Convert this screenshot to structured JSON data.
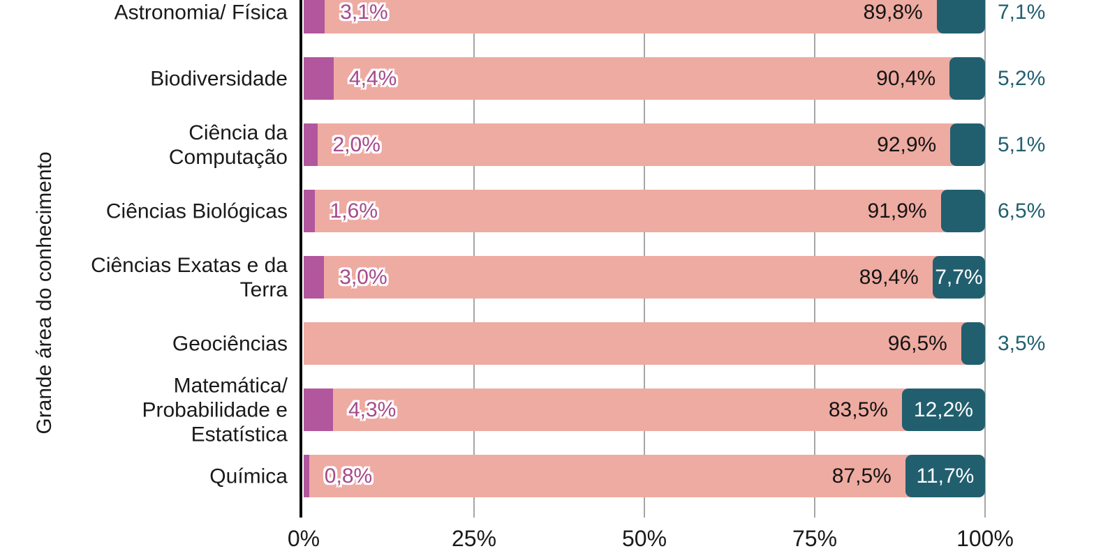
{
  "chart_data": {
    "type": "bar",
    "orientation": "horizontal",
    "stacked": true,
    "percent_scale": true,
    "title": "",
    "xlabel": "",
    "ylabel": "Grande área do conhecimento",
    "xlim": [
      0,
      100
    ],
    "xticks": [
      "0%",
      "25%",
      "50%",
      "75%",
      "100%"
    ],
    "grid": true,
    "legend": false,
    "categories": [
      "Astronomia/ Física",
      "Biodiversidade",
      "Ciência da Computação",
      "Ciências Biológicas",
      "Ciências Exatas e da Terra",
      "Geociências",
      "Matemática/ Probabilidade e Estatística",
      "Química"
    ],
    "series": [
      {
        "name": "segmento-magenta",
        "color": "#b2579d",
        "values": [
          3.1,
          4.4,
          2.0,
          1.6,
          3.0,
          0.0,
          4.3,
          0.8
        ]
      },
      {
        "name": "segmento-salmao",
        "color": "#eeaba1",
        "values": [
          89.8,
          90.4,
          92.9,
          91.9,
          89.4,
          96.5,
          83.5,
          87.5
        ]
      },
      {
        "name": "segmento-teal",
        "color": "#215f6f",
        "values": [
          7.1,
          5.2,
          5.1,
          6.5,
          7.7,
          3.5,
          12.2,
          11.7
        ]
      }
    ],
    "rows": [
      {
        "label_lines": [
          "Astronomia/ Física"
        ],
        "magenta": 3.1,
        "salmon": 89.8,
        "teal": 7.1,
        "magenta_label": "3,1%",
        "salmon_label": "89,8%",
        "teal_label": "7,1%",
        "teal_label_placement": "outside"
      },
      {
        "label_lines": [
          "Biodiversidade"
        ],
        "magenta": 4.4,
        "salmon": 90.4,
        "teal": 5.2,
        "magenta_label": "4,4%",
        "salmon_label": "90,4%",
        "teal_label": "5,2%",
        "teal_label_placement": "outside"
      },
      {
        "label_lines": [
          "Ciência da",
          "Computação"
        ],
        "magenta": 2.0,
        "salmon": 92.9,
        "teal": 5.1,
        "magenta_label": "2,0%",
        "salmon_label": "92,9%",
        "teal_label": "5,1%",
        "teal_label_placement": "outside"
      },
      {
        "label_lines": [
          "Ciências Biológicas"
        ],
        "magenta": 1.6,
        "salmon": 91.9,
        "teal": 6.5,
        "magenta_label": "1,6%",
        "salmon_label": "91,9%",
        "teal_label": "6,5%",
        "teal_label_placement": "outside"
      },
      {
        "label_lines": [
          "Ciências Exatas e da",
          "Terra"
        ],
        "magenta": 3.0,
        "salmon": 89.4,
        "teal": 7.7,
        "magenta_label": "3,0%",
        "salmon_label": "89,4%",
        "teal_label": "7,7%",
        "teal_label_placement": "inside"
      },
      {
        "label_lines": [
          "Geociências"
        ],
        "magenta": 0.0,
        "salmon": 96.5,
        "teal": 3.5,
        "magenta_label": null,
        "salmon_label": "96,5%",
        "teal_label": "3,5%",
        "teal_label_placement": "outside"
      },
      {
        "label_lines": [
          "Matemática/",
          "Probabilidade e",
          "Estatística"
        ],
        "magenta": 4.3,
        "salmon": 83.5,
        "teal": 12.2,
        "magenta_label": "4,3%",
        "salmon_label": "83,5%",
        "teal_label": "12,2%",
        "teal_label_placement": "inside"
      },
      {
        "label_lines": [
          "Química"
        ],
        "magenta": 0.8,
        "salmon": 87.5,
        "teal": 11.7,
        "magenta_label": "0,8%",
        "salmon_label": "87,5%",
        "teal_label": "11,7%",
        "teal_label_placement": "inside"
      }
    ]
  },
  "colors": {
    "magenta": "#b2579d",
    "salmon": "#eeaba1",
    "teal": "#215f6f",
    "magenta_label_text": "#a64a8c",
    "teal_outside_text": "#215f6f",
    "grid": "#a6a6a6",
    "axis": "#0a0a0a",
    "text": "#1a1a1a"
  }
}
